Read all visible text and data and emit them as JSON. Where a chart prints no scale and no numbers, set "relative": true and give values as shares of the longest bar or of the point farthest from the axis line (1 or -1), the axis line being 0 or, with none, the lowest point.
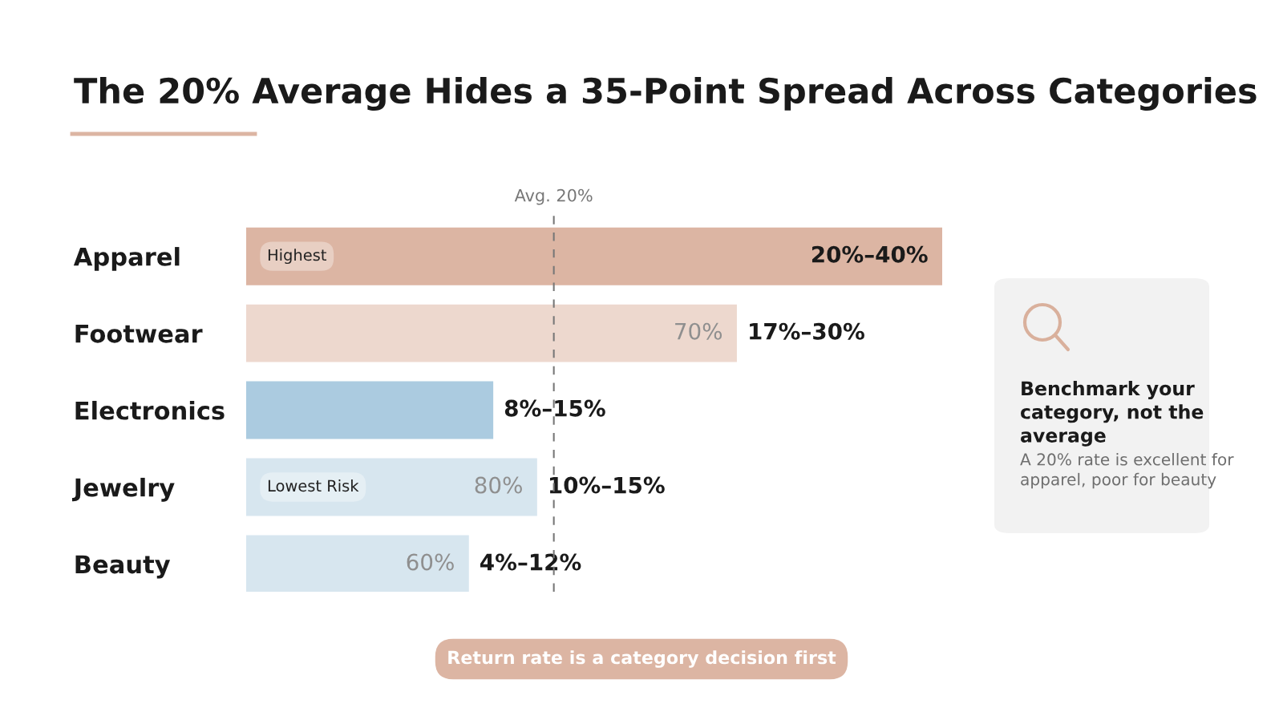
{
  "chart_data": {
    "type": "bar",
    "orientation": "horizontal",
    "relative": true,
    "title": "The 20% Average Hides a 35-Point Spread Across Categories",
    "categories": [
      "Apparel",
      "Footwear",
      "Electronics",
      "Jewelry",
      "Beauty"
    ],
    "values": [
      1.0,
      0.705,
      0.355,
      0.418,
      0.32
    ],
    "colors": [
      "#dcb5a3",
      "#edd8ce",
      "#abcbe0",
      "#d7e6ef",
      "#d7e6ef"
    ],
    "ref_lines": [
      {
        "axis": "x",
        "value": 0.442,
        "label": "Avg. 20%",
        "color": "#777777",
        "line_style": "dashed"
      }
    ],
    "annotations": [
      "Highest",
      "70%",
      "Lowest Risk",
      "80%",
      "60%",
      "Benchmark your category, not the average",
      "A 20% rate is excellent for apparel, poor for beauty",
      "Return rate is a category decision first",
      "20%–40%",
      "17%–30%",
      "8%–15%",
      "10%–15%",
      "4%–12%"
    ],
    "grid": false
  }
}
